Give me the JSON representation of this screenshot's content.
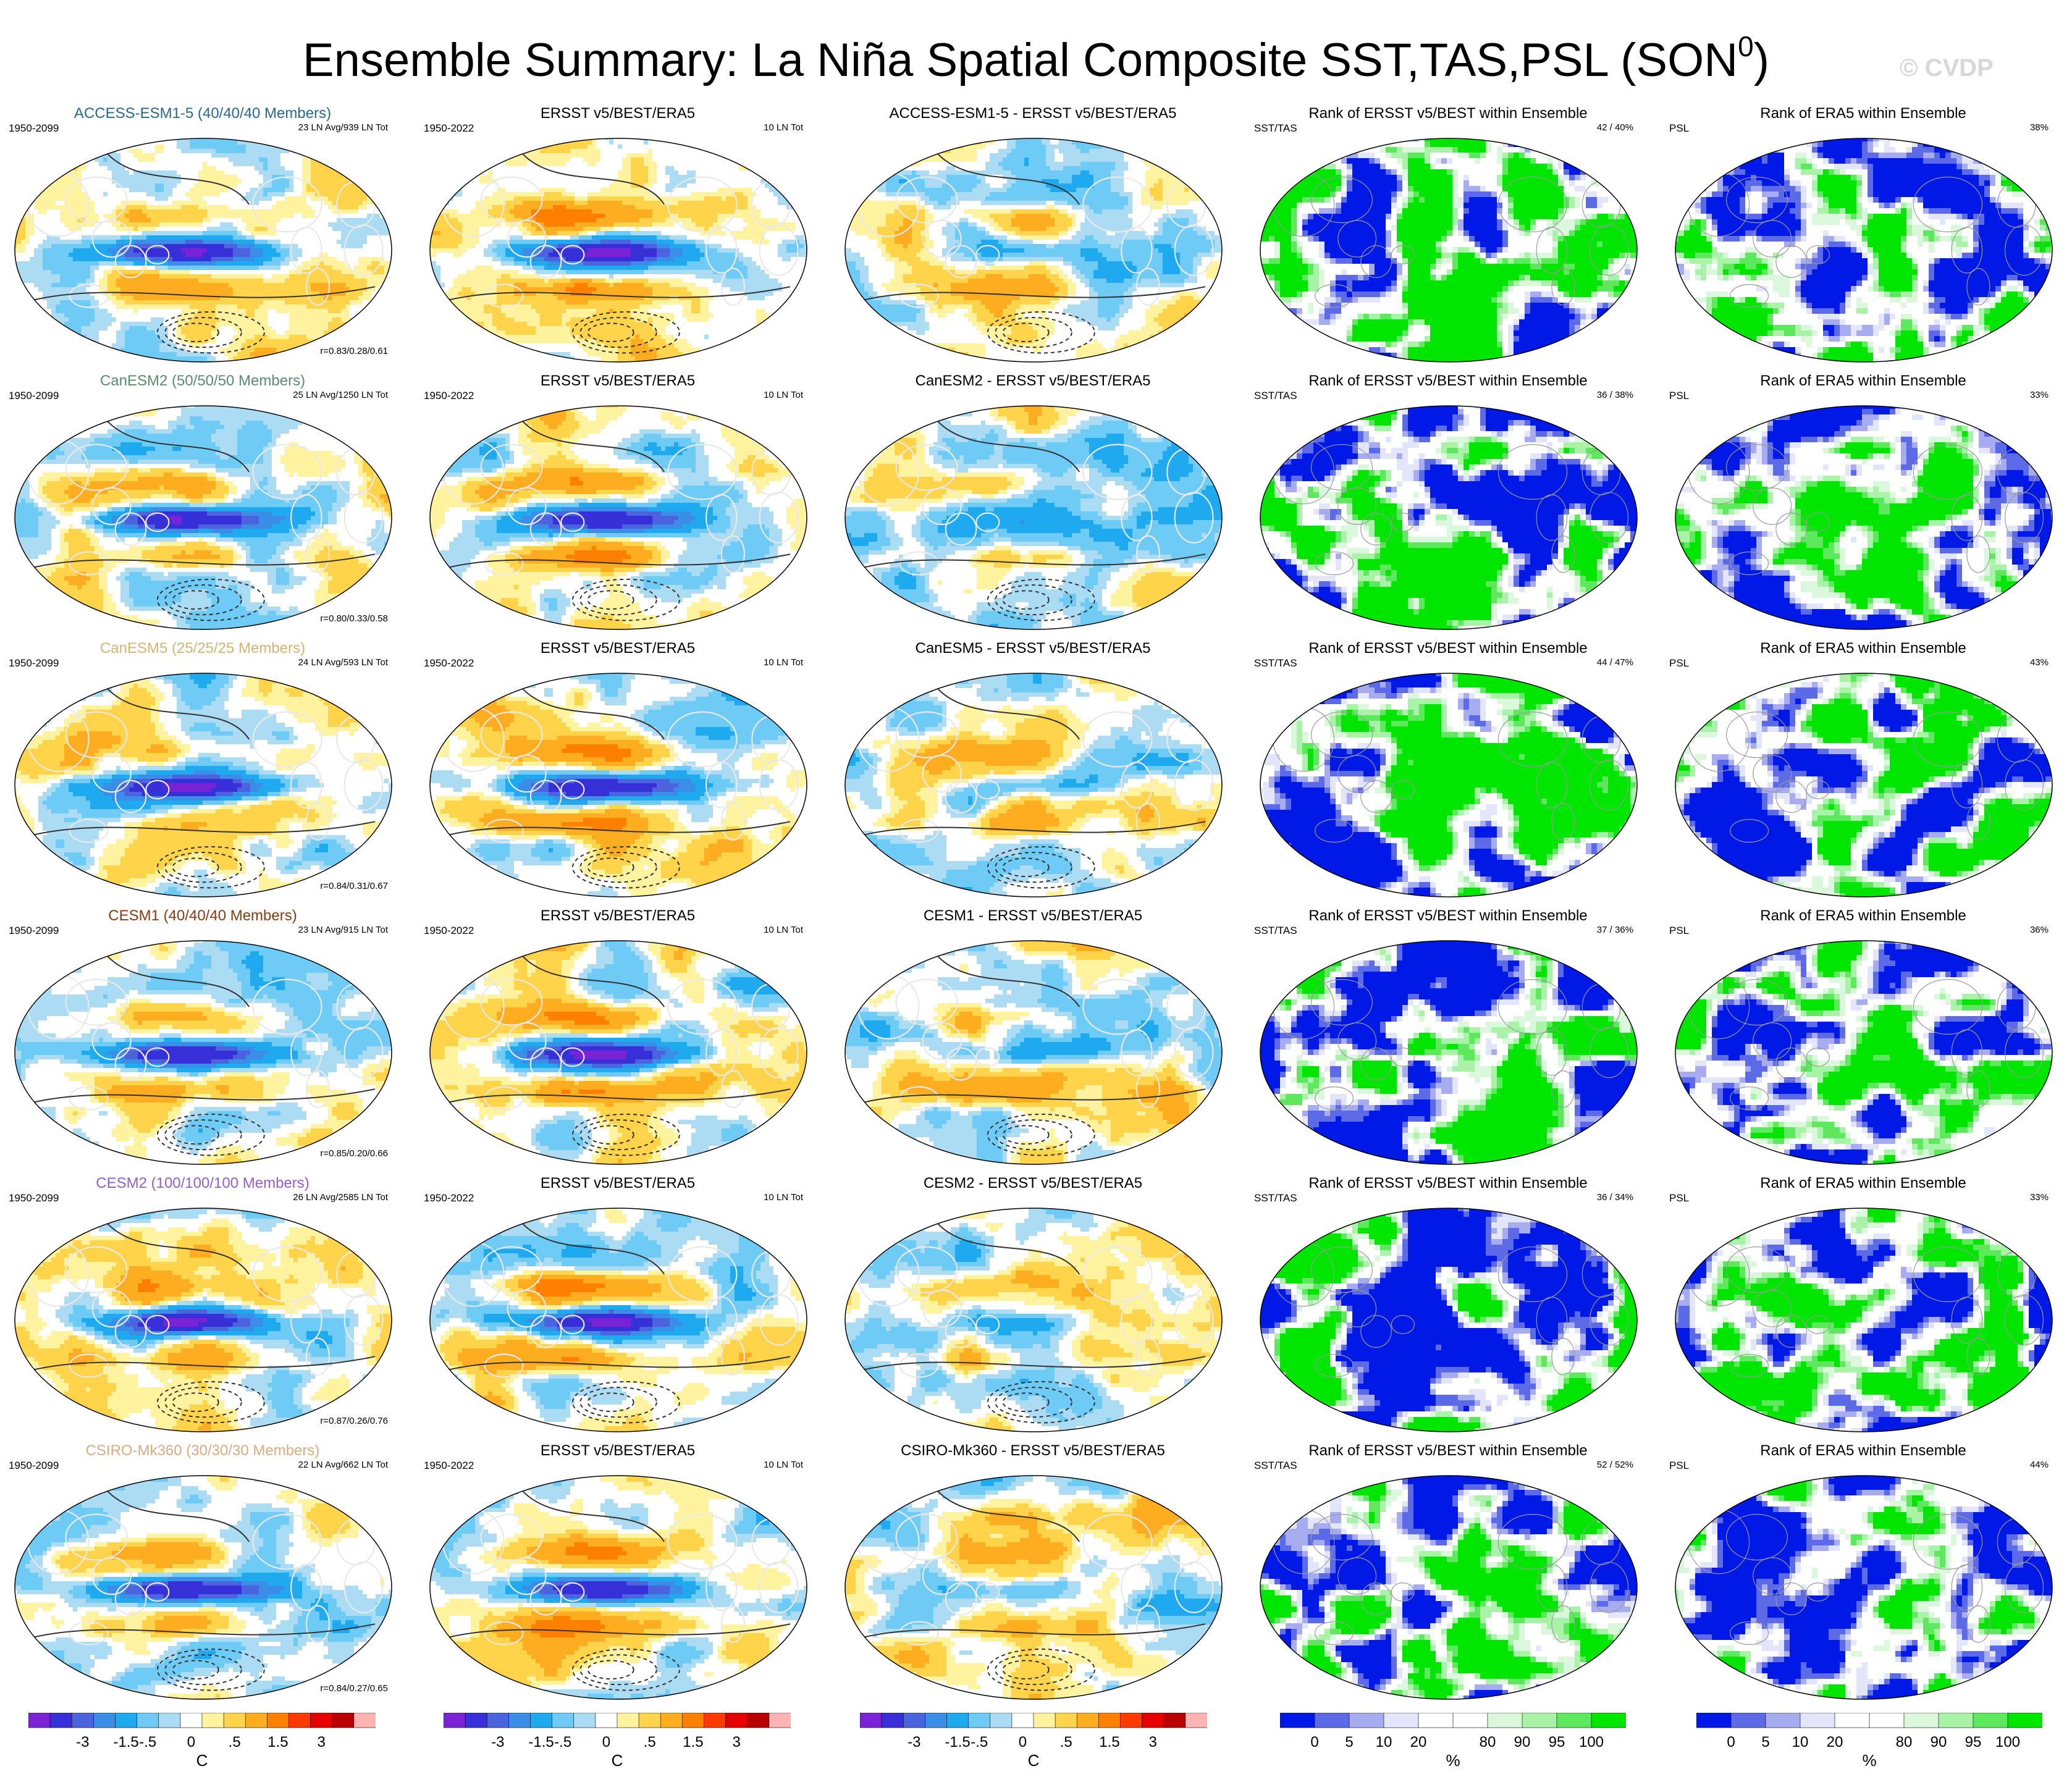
{
  "title": "Ensemble Summary: La Niña Spatial Composite SST,TAS,PSL (SON",
  "title_sup": "0",
  "title_close": ")",
  "watermark": "© CVDP",
  "palettes": {
    "anom": [
      "#7a22d6",
      "#3730d8",
      "#4c63e0",
      "#3b8ee8",
      "#1faaf0",
      "#6ecbf5",
      "#acdcf4",
      "#ffffff",
      "#fff3a0",
      "#ffd34a",
      "#ffad20",
      "#ff7f00",
      "#ff3a00",
      "#e60000",
      "#b80000",
      "#ffb4b4"
    ],
    "rank": [
      "#0019e6",
      "#5c6ae8",
      "#a6acef",
      "#e3e6fa",
      "#ffffff",
      "#ffffff",
      "#dcf8dc",
      "#a8f3a8",
      "#5ee85e",
      "#00e600"
    ]
  },
  "colors": {
    "model_titles": [
      "#27698f",
      "#5a8c6e",
      "#d4b56e",
      "#8b3a10",
      "#8f5ed8",
      "#d8ac80"
    ],
    "land_outline": "#e9e9e9",
    "grid_outline": "#9a9a9a"
  },
  "rows": [
    {
      "model": "ACCESS-ESM1-5 (40/40/40 Members)",
      "model_short": "ACCESS-ESM1-5",
      "ln_avg": "23 LN Avg/939 LN Tot",
      "corr": "r=0.83/0.28/0.61",
      "rank_sst": "42 /  40%",
      "rank_psl": "38%"
    },
    {
      "model": "CanESM2 (50/50/50 Members)",
      "model_short": "CanESM2",
      "ln_avg": "25 LN Avg/1250 LN Tot",
      "corr": "r=0.80/0.33/0.58",
      "rank_sst": "36 /  38%",
      "rank_psl": "33%"
    },
    {
      "model": "CanESM5 (25/25/25 Members)",
      "model_short": "CanESM5",
      "ln_avg": "24 LN Avg/593 LN Tot",
      "corr": "r=0.84/0.31/0.67",
      "rank_sst": "44 /  47%",
      "rank_psl": "43%"
    },
    {
      "model": "CESM1 (40/40/40 Members)",
      "model_short": "CESM1",
      "ln_avg": "23 LN Avg/915 LN Tot",
      "corr": "r=0.85/0.20/0.66",
      "rank_sst": "37 /  36%",
      "rank_psl": "36%"
    },
    {
      "model": "CESM2 (100/100/100 Members)",
      "model_short": "CESM2",
      "ln_avg": "26 LN Avg/2585 LN Tot",
      "corr": "r=0.87/0.26/0.76",
      "rank_sst": "36 /  34%",
      "rank_psl": "33%"
    },
    {
      "model": "CSIRO-Mk360 (30/30/30 Members)",
      "model_short": "CSIRO-Mk360",
      "ln_avg": "22 LN Avg/662 LN Tot",
      "corr": "r=0.84/0.27/0.65",
      "rank_sst": "52 /  52%",
      "rank_psl": "44%"
    }
  ],
  "labels": {
    "model_years": "1950-2099",
    "obs_title": "ERSST v5/BEST/ERA5",
    "obs_years": "1950-2022",
    "obs_tot": "10 LN Tot",
    "diff_suffix": " - ERSST v5/BEST/ERA5",
    "rank_sst_title": "Rank of ERSST v5/BEST within Ensemble",
    "rank_sst_label": "SST/TAS",
    "rank_psl_title": "Rank of ERA5 within Ensemble",
    "rank_psl_label": "PSL"
  },
  "colorbars": {
    "anom": {
      "ticks": [
        "-3",
        "-1.5",
        "-.5",
        "0",
        ".5",
        "1.5",
        "3"
      ],
      "unit": "C"
    },
    "rank": {
      "ticks": [
        "0",
        "5",
        "10",
        "20",
        "80",
        "90",
        "95",
        "100"
      ],
      "unit": "%"
    }
  }
}
